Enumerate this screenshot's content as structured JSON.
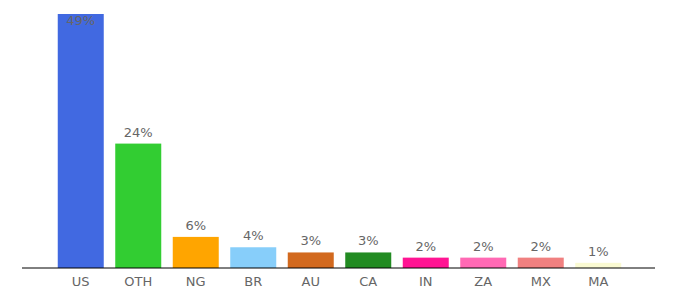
{
  "chart_data": {
    "type": "bar",
    "categories": [
      "US",
      "OTH",
      "NG",
      "BR",
      "AU",
      "CA",
      "IN",
      "ZA",
      "MX",
      "MA"
    ],
    "values": [
      49,
      24,
      6,
      4,
      3,
      3,
      2,
      2,
      2,
      1
    ],
    "value_labels": [
      "49%",
      "24%",
      "6%",
      "4%",
      "3%",
      "3%",
      "2%",
      "2%",
      "2%",
      "1%"
    ],
    "colors": [
      "#4169e1",
      "#32cd32",
      "#ffa500",
      "#87cefa",
      "#d2691e",
      "#228b22",
      "#ff1493",
      "#ff69b4",
      "#f08080",
      "#fafad2"
    ],
    "ylim": [
      0,
      49
    ],
    "data_labels": true,
    "tick_labels": "x"
  }
}
